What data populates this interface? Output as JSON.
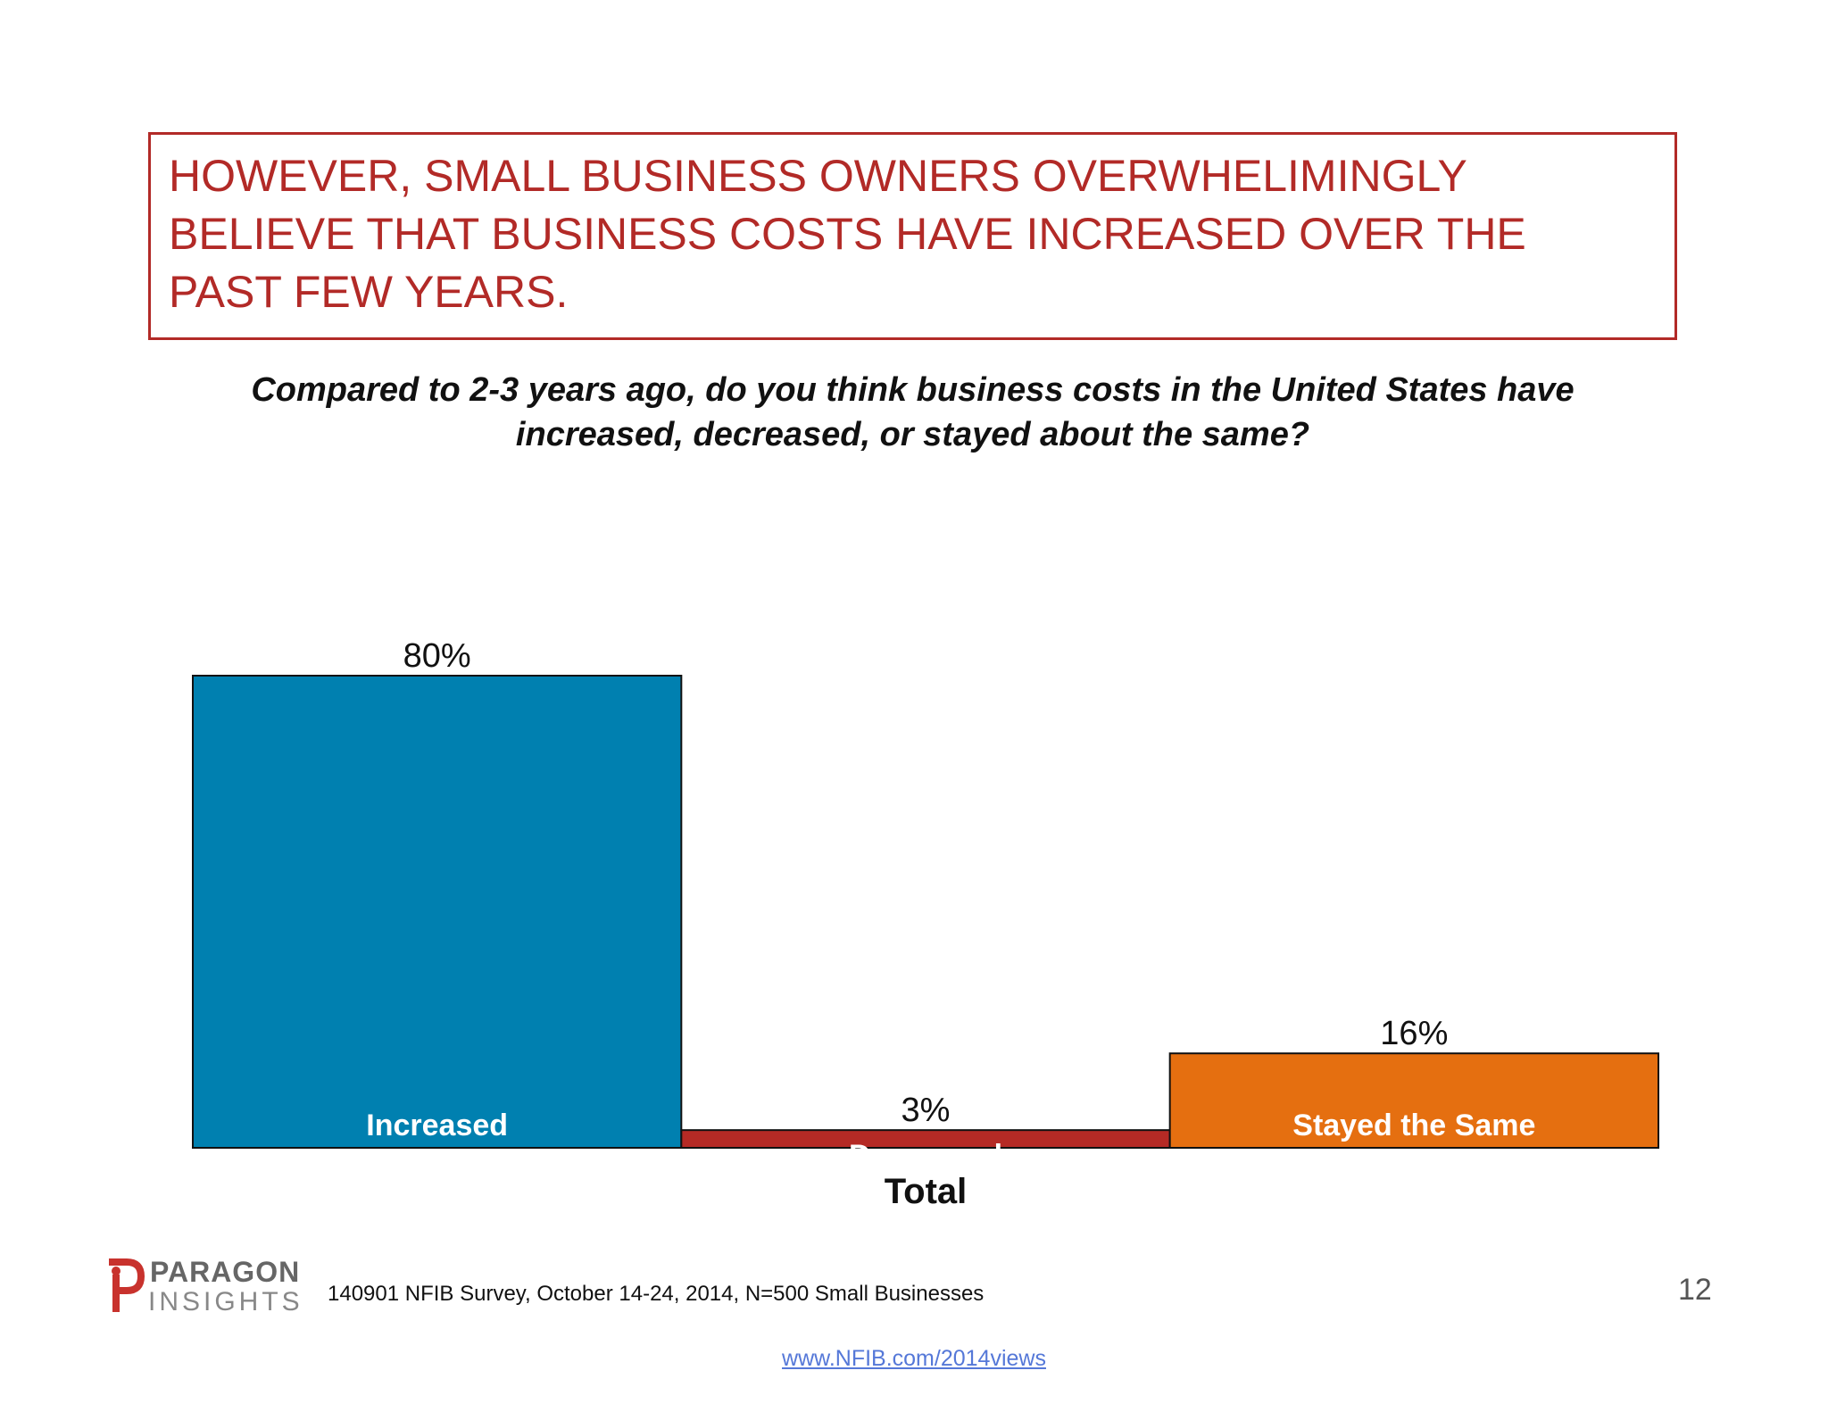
{
  "headline": {
    "lines": [
      "HOWEVER, SMALL BUSINESS OWNERS OVERWHELIMINGLY",
      "BELIEVE THAT BUSINESS COSTS HAVE INCREASED OVER THE",
      "PAST FEW YEARS."
    ],
    "color": "#b22a27"
  },
  "question": {
    "lines": [
      "Compared to 2-3 years ago, do you think business costs in the United States have",
      "increased, decreased, or stayed about the same?"
    ]
  },
  "chart_data": {
    "type": "bar",
    "categories": [
      "Total"
    ],
    "xlabel": "Total",
    "ylim": [
      0,
      80
    ],
    "grid": false,
    "series": [
      {
        "name": "Increased",
        "values": [
          80
        ],
        "value_label": "80%",
        "color": "#0080b0"
      },
      {
        "name": "Decreased",
        "values": [
          3
        ],
        "value_label": "3%",
        "color": "#b52a25"
      },
      {
        "name": "Stayed the Same",
        "values": [
          16
        ],
        "value_label": "16%",
        "color": "#e56f10"
      }
    ]
  },
  "footer": {
    "source": "140901 NFIB Survey, October 14-24, 2014, N=500 Small Businesses",
    "page_number": "12",
    "link": "www.NFIB.com/2014views",
    "logo_top": "PARAGON",
    "logo_bottom": "INSIGHTS",
    "logo_icon": "paragon-p-icon"
  }
}
